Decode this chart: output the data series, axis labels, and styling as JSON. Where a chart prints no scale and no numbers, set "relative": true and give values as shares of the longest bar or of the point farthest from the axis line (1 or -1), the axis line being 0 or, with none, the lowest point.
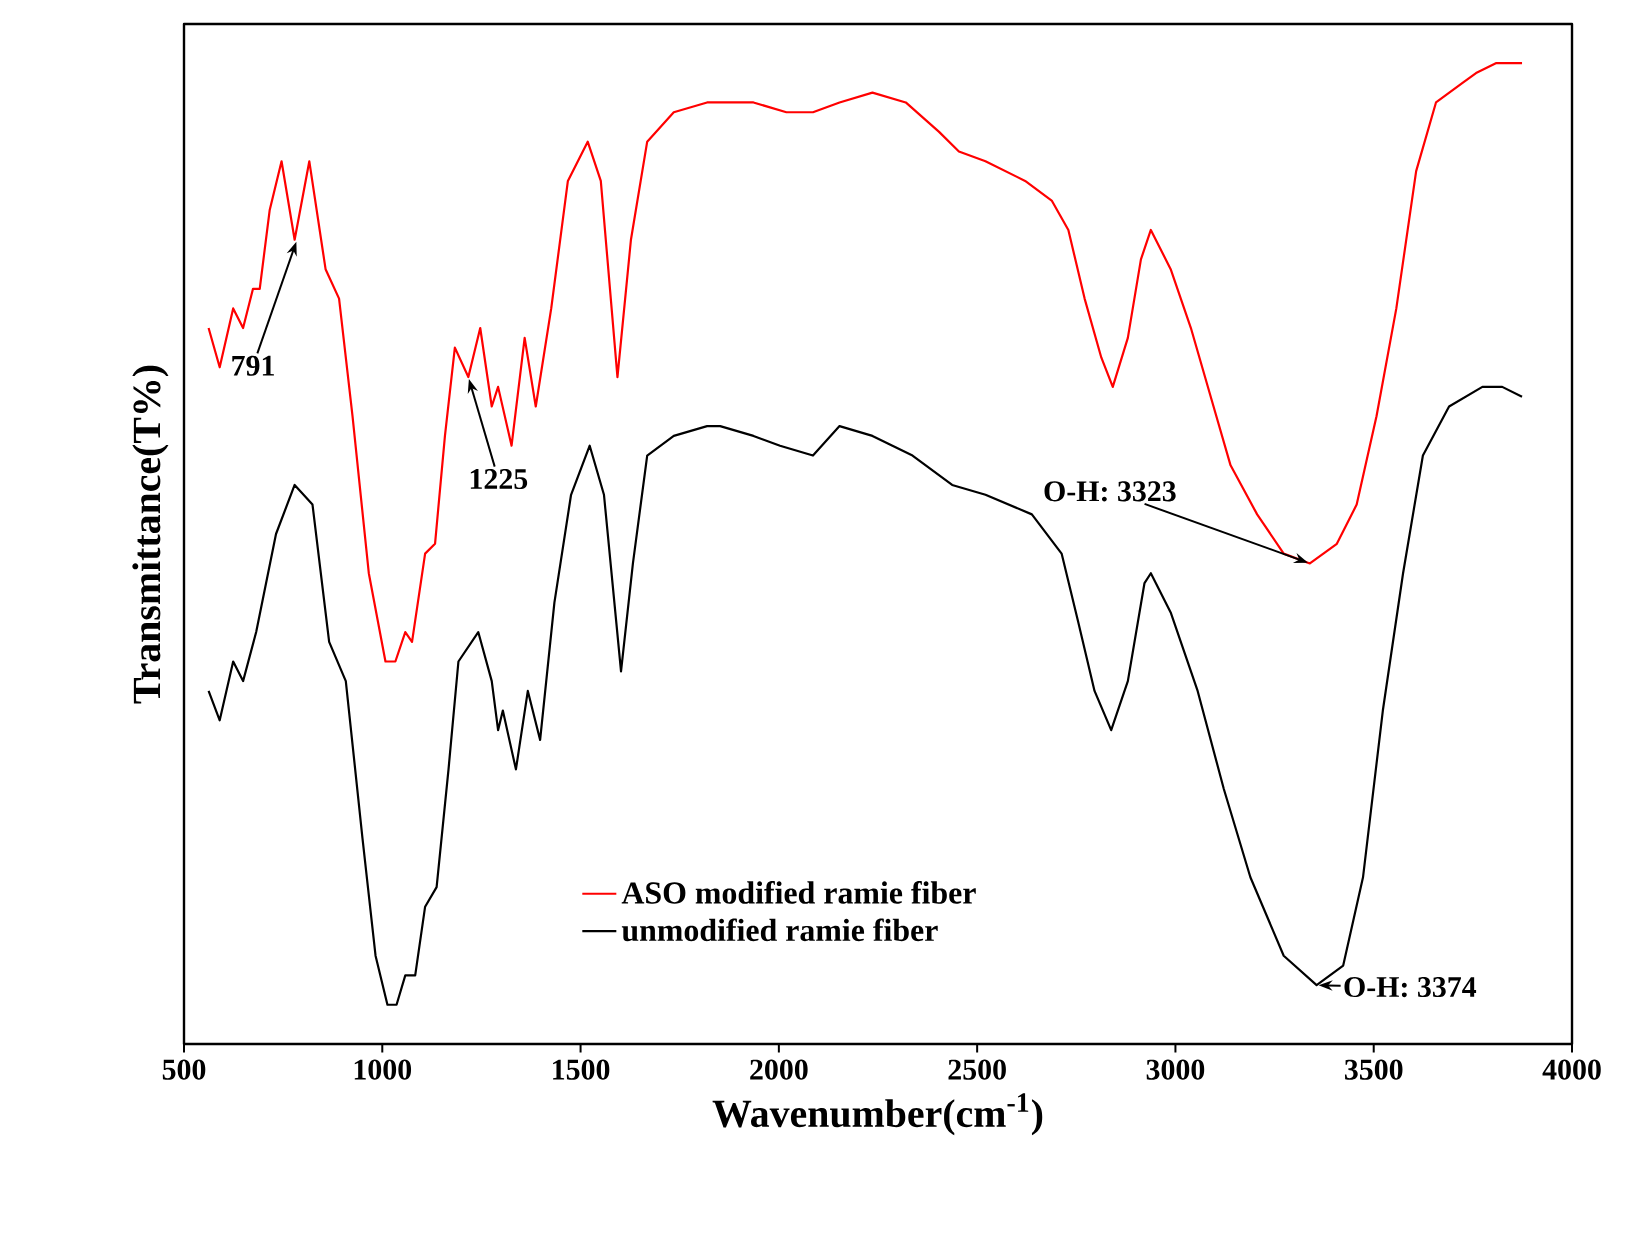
{
  "chart_data": {
    "type": "line",
    "relative": true,
    "xlabel": "Wavenumber(cm$^{-1}$)",
    "ylabel": "Transmittance(T%)",
    "xlim": [
      500,
      4000
    ],
    "xticks": [
      500,
      1000,
      1500,
      2000,
      2500,
      3000,
      3500,
      4000
    ],
    "legend": "bottom",
    "grid": false,
    "series": [
      {
        "name": "ASO modified ramie fiber",
        "color": "#ff0000",
        "x": [
          562,
          590,
          624,
          649,
          674,
          691,
          716,
          746,
          779,
          816,
          857,
          891,
          925,
          966,
          1008,
          1033,
          1058,
          1075,
          1108,
          1133,
          1158,
          1183,
          1217,
          1247,
          1276,
          1292,
          1326,
          1359,
          1387,
          1426,
          1468,
          1518,
          1551,
          1593,
          1627,
          1668,
          1735,
          1819,
          1852,
          1936,
          2019,
          2086,
          2153,
          2236,
          2320,
          2404,
          2454,
          2521,
          2621,
          2688,
          2730,
          2771,
          2813,
          2842,
          2880,
          2913,
          2938,
          2988,
          3039,
          3089,
          3139,
          3206,
          3273,
          3339,
          3407,
          3457,
          3507,
          3557,
          3607,
          3657,
          3724,
          3758,
          3808,
          3874
        ],
        "values": [
          0.73,
          0.69,
          0.75,
          0.73,
          0.77,
          0.77,
          0.85,
          0.9,
          0.82,
          0.9,
          0.79,
          0.76,
          0.64,
          0.48,
          0.39,
          0.39,
          0.42,
          0.41,
          0.5,
          0.51,
          0.62,
          0.71,
          0.68,
          0.73,
          0.65,
          0.67,
          0.61,
          0.72,
          0.65,
          0.75,
          0.88,
          0.92,
          0.88,
          0.68,
          0.82,
          0.92,
          0.95,
          0.96,
          0.96,
          0.96,
          0.95,
          0.95,
          0.96,
          0.97,
          0.96,
          0.93,
          0.91,
          0.9,
          0.88,
          0.86,
          0.83,
          0.76,
          0.7,
          0.67,
          0.72,
          0.8,
          0.83,
          0.79,
          0.73,
          0.66,
          0.59,
          0.54,
          0.5,
          0.49,
          0.51,
          0.55,
          0.64,
          0.75,
          0.89,
          0.96,
          0.98,
          0.99,
          1.0,
          1.0
        ]
      },
      {
        "name": "unmodified ramie fiber",
        "color": "#000000",
        "x": [
          562,
          590,
          624,
          649,
          682,
          732,
          779,
          824,
          866,
          908,
          950,
          983,
          1013,
          1036,
          1058,
          1083,
          1108,
          1137,
          1167,
          1192,
          1242,
          1276,
          1292,
          1304,
          1337,
          1367,
          1398,
          1434,
          1476,
          1523,
          1559,
          1602,
          1632,
          1668,
          1735,
          1819,
          1852,
          1936,
          2003,
          2086,
          2153,
          2236,
          2337,
          2437,
          2521,
          2638,
          2713,
          2755,
          2796,
          2838,
          2880,
          2922,
          2938,
          2988,
          3056,
          3122,
          3189,
          3273,
          3356,
          3423,
          3473,
          3523,
          3574,
          3624,
          3690,
          3774,
          3824,
          3874
        ],
        "values": [
          0.36,
          0.33,
          0.39,
          0.37,
          0.42,
          0.52,
          0.57,
          0.55,
          0.41,
          0.37,
          0.21,
          0.09,
          0.04,
          0.04,
          0.07,
          0.07,
          0.14,
          0.16,
          0.28,
          0.39,
          0.42,
          0.37,
          0.32,
          0.34,
          0.28,
          0.36,
          0.31,
          0.45,
          0.56,
          0.61,
          0.56,
          0.38,
          0.49,
          0.6,
          0.62,
          0.63,
          0.63,
          0.62,
          0.61,
          0.6,
          0.63,
          0.62,
          0.6,
          0.57,
          0.56,
          0.54,
          0.5,
          0.43,
          0.36,
          0.32,
          0.37,
          0.47,
          0.48,
          0.44,
          0.36,
          0.26,
          0.17,
          0.09,
          0.06,
          0.08,
          0.17,
          0.34,
          0.48,
          0.6,
          0.65,
          0.67,
          0.67,
          0.66
        ]
      }
    ],
    "annotations": [
      {
        "text": "791",
        "x": 785,
        "y": 0.82
      },
      {
        "text": "1225",
        "x": 1217,
        "y": 0.68
      },
      {
        "text": "O-H: 3323",
        "x": 3339,
        "y": 0.49
      },
      {
        "text": "O-H: 3374",
        "x": 3356,
        "y": 0.06
      }
    ]
  }
}
